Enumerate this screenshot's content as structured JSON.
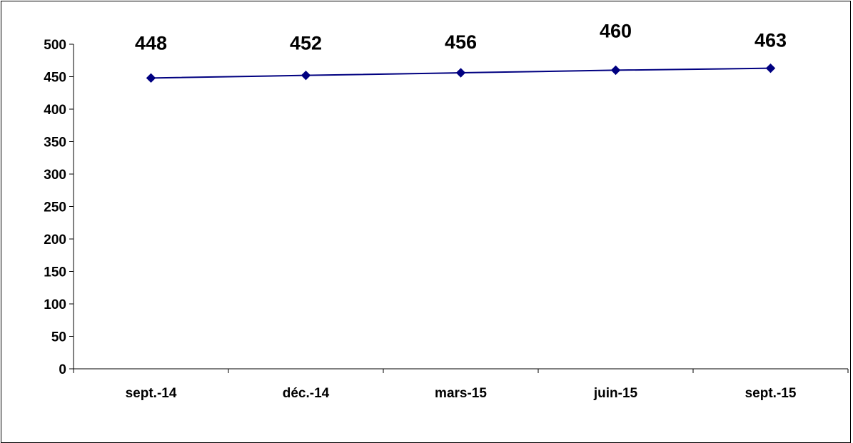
{
  "chart_data": {
    "type": "line",
    "title": "",
    "xlabel": "",
    "ylabel": "",
    "categories": [
      "sept.-14",
      "déc.-14",
      "mars-15",
      "juin-15",
      "sept.-15"
    ],
    "series": [
      {
        "values": [
          448,
          452,
          456,
          460,
          463
        ],
        "color": "#000080"
      }
    ],
    "data_labels": [
      "448",
      "452",
      "456",
      "460",
      "463"
    ],
    "ylim": [
      0,
      500
    ],
    "yticks": [
      0,
      50,
      100,
      150,
      200,
      250,
      300,
      350,
      400,
      450,
      500
    ],
    "ytick_labels": [
      "0",
      "50",
      "100",
      "150",
      "200",
      "250",
      "300",
      "350",
      "400",
      "450",
      "500"
    ],
    "grid": false,
    "legend": "none",
    "marker": "diamond"
  }
}
